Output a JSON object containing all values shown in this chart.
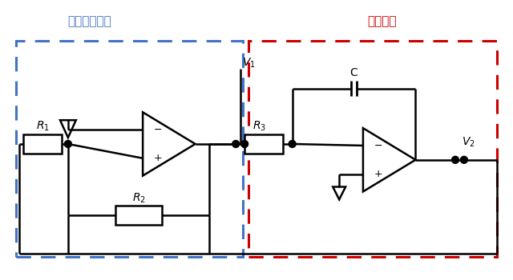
{
  "title_comparator": "コンパレータ",
  "title_integrator": "積分回路",
  "label_R1": "$R_1$",
  "label_R2": "$R_2$",
  "label_R3": "$R_3$",
  "label_C": "C",
  "label_V1": "$V_1$",
  "label_V2": "$V_2$",
  "color_comparator_box": "#4472C4",
  "color_integrator_box": "#CC0000",
  "color_title_comparator": "#4472C4",
  "color_title_integrator": "#CC0000",
  "bg_color": "#ffffff",
  "figsize": [
    6.4,
    3.5
  ],
  "dpi": 100
}
